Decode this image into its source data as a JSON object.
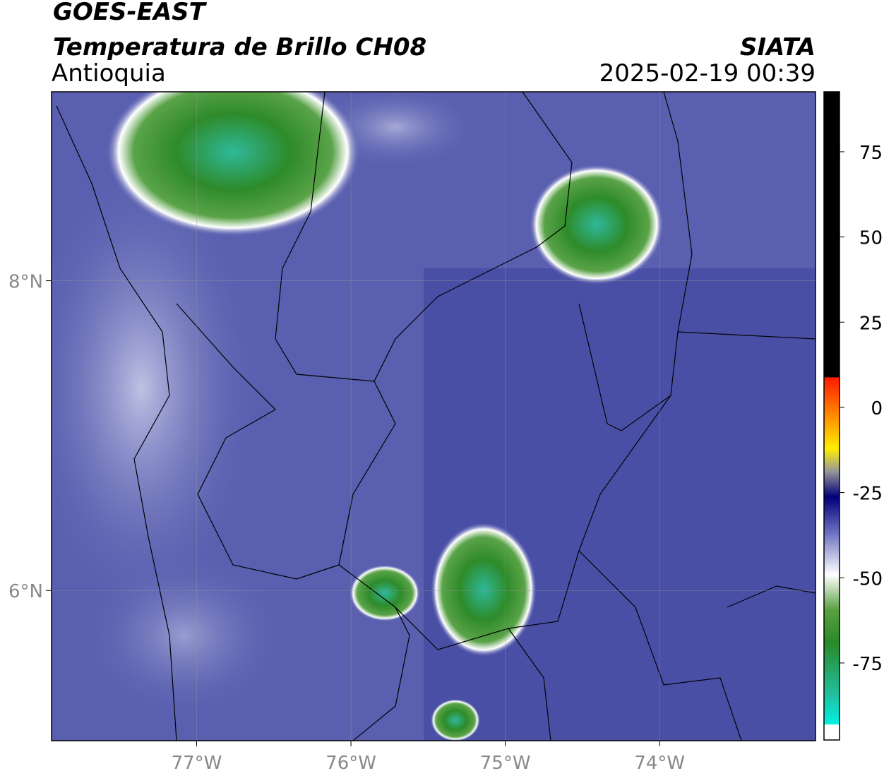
{
  "header": {
    "title": "GOES-EAST",
    "subtitle": "Temperatura de Brillo CH08",
    "region": "Antioquia",
    "source": "SIATA",
    "datetime": "2025-02-19 00:39"
  },
  "map": {
    "xlim": [
      -77.94,
      -72.99
    ],
    "ylim": [
      5.03,
      9.22
    ],
    "xticks": [
      {
        "value": -77,
        "label": "77°W"
      },
      {
        "value": -76,
        "label": "76°W"
      },
      {
        "value": -75,
        "label": "75°W"
      },
      {
        "value": -74,
        "label": "74°W"
      }
    ],
    "yticks": [
      {
        "value": 8,
        "label": "8°N"
      },
      {
        "value": 6,
        "label": "6°N"
      }
    ],
    "grid": true
  },
  "colorbar": {
    "lim": [
      -97.6,
      92.6
    ],
    "ticks": [
      75,
      50,
      25,
      0,
      -25,
      -50,
      -75
    ]
  }
}
